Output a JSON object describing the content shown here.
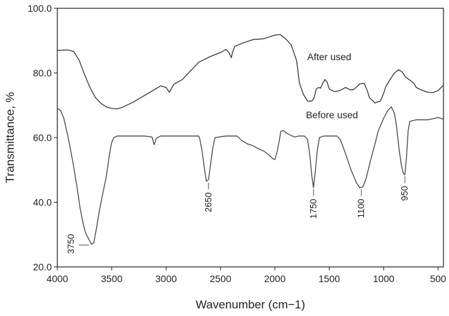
{
  "chart_data": {
    "type": "line",
    "title": "",
    "xlabel": "Wavenumber (cm−1)",
    "ylabel": "Transmittance, %",
    "xlim": [
      4000,
      450
    ],
    "ylim": [
      20,
      100
    ],
    "x_reversed": true,
    "grid": false,
    "legend": "none",
    "x_ticks": [
      4000,
      3500,
      3000,
      2500,
      2000,
      1500,
      1000,
      500
    ],
    "x_tick_labels": [
      "4000",
      "3500",
      "3000",
      "2500",
      "2000",
      "1500",
      "1000",
      "500"
    ],
    "y_ticks": [
      20,
      40,
      60,
      80,
      100
    ],
    "y_tick_labels": [
      "20.0",
      "40.0",
      "60.0",
      "80.0",
      "100.0"
    ],
    "series": [
      {
        "name": "After used",
        "color": "#3a3a3a",
        "points": [
          [
            4000,
            87.0
          ],
          [
            3900,
            87.1
          ],
          [
            3850,
            86.6
          ],
          [
            3800,
            84.0
          ],
          [
            3750,
            79.5
          ],
          [
            3700,
            75.5
          ],
          [
            3650,
            72.4
          ],
          [
            3600,
            70.6
          ],
          [
            3550,
            69.5
          ],
          [
            3500,
            69.0
          ],
          [
            3450,
            68.9
          ],
          [
            3400,
            69.4
          ],
          [
            3300,
            71.0
          ],
          [
            3200,
            73.0
          ],
          [
            3100,
            75.0
          ],
          [
            3050,
            76.0
          ],
          [
            3000,
            75.5
          ],
          [
            2970,
            74.0
          ],
          [
            2930,
            76.5
          ],
          [
            2850,
            78.0
          ],
          [
            2800,
            79.8
          ],
          [
            2700,
            83.3
          ],
          [
            2600,
            85.0
          ],
          [
            2500,
            86.3
          ],
          [
            2450,
            87.3
          ],
          [
            2420,
            86.2
          ],
          [
            2400,
            84.7
          ],
          [
            2390,
            86.3
          ],
          [
            2370,
            88.2
          ],
          [
            2300,
            89.2
          ],
          [
            2200,
            90.3
          ],
          [
            2100,
            90.6
          ],
          [
            2000,
            91.7
          ],
          [
            1950,
            91.9
          ],
          [
            1900,
            90.5
          ],
          [
            1850,
            88.7
          ],
          [
            1800,
            83.8
          ],
          [
            1775,
            77.0
          ],
          [
            1740,
            73.5
          ],
          [
            1700,
            71.3
          ],
          [
            1660,
            71.3
          ],
          [
            1640,
            72.3
          ],
          [
            1620,
            75.0
          ],
          [
            1600,
            75.5
          ],
          [
            1580,
            75.3
          ],
          [
            1560,
            76.8
          ],
          [
            1540,
            78.0
          ],
          [
            1520,
            77.2
          ],
          [
            1500,
            75.0
          ],
          [
            1450,
            74.2
          ],
          [
            1400,
            74.6
          ],
          [
            1350,
            75.5
          ],
          [
            1310,
            74.8
          ],
          [
            1280,
            74.8
          ],
          [
            1250,
            75.6
          ],
          [
            1220,
            76.6
          ],
          [
            1180,
            76.8
          ],
          [
            1150,
            74.5
          ],
          [
            1130,
            72.3
          ],
          [
            1100,
            71.4
          ],
          [
            1080,
            70.7
          ],
          [
            1050,
            71.1
          ],
          [
            1030,
            71.3
          ],
          [
            1000,
            73.7
          ],
          [
            980,
            75.8
          ],
          [
            940,
            78.0
          ],
          [
            900,
            80.0
          ],
          [
            860,
            81.0
          ],
          [
            830,
            80.3
          ],
          [
            800,
            78.8
          ],
          [
            760,
            77.8
          ],
          [
            720,
            76.7
          ],
          [
            700,
            75.5
          ],
          [
            650,
            74.7
          ],
          [
            600,
            74.1
          ],
          [
            550,
            73.9
          ],
          [
            500,
            74.5
          ],
          [
            470,
            75.6
          ],
          [
            450,
            76.2
          ]
        ]
      },
      {
        "name": "Before used",
        "color": "#4a4a4a",
        "points": [
          [
            4000,
            69.0
          ],
          [
            3970,
            68.4
          ],
          [
            3940,
            66.0
          ],
          [
            3900,
            60.0
          ],
          [
            3860,
            53.0
          ],
          [
            3820,
            45.0
          ],
          [
            3790,
            38.0
          ],
          [
            3760,
            33.0
          ],
          [
            3740,
            30.5
          ],
          [
            3710,
            28.5
          ],
          [
            3685,
            27.0
          ],
          [
            3665,
            27.5
          ],
          [
            3640,
            32.0
          ],
          [
            3610,
            38.0
          ],
          [
            3580,
            43.0
          ],
          [
            3550,
            48.0
          ],
          [
            3520,
            55.0
          ],
          [
            3500,
            58.5
          ],
          [
            3480,
            60.0
          ],
          [
            3450,
            60.5
          ],
          [
            3350,
            60.5
          ],
          [
            3200,
            60.5
          ],
          [
            3130,
            60.2
          ],
          [
            3110,
            57.8
          ],
          [
            3090,
            59.8
          ],
          [
            3050,
            60.5
          ],
          [
            2900,
            60.5
          ],
          [
            2700,
            60.5
          ],
          [
            2690,
            59.5
          ],
          [
            2670,
            56.0
          ],
          [
            2650,
            51.0
          ],
          [
            2630,
            46.5
          ],
          [
            2610,
            47.0
          ],
          [
            2590,
            52.0
          ],
          [
            2570,
            57.0
          ],
          [
            2550,
            60.0
          ],
          [
            2450,
            60.5
          ],
          [
            2350,
            60.5
          ],
          [
            2300,
            59.0
          ],
          [
            2250,
            58.0
          ],
          [
            2200,
            57.5
          ],
          [
            2150,
            56.5
          ],
          [
            2100,
            55.8
          ],
          [
            2050,
            54.5
          ],
          [
            2020,
            53.5
          ],
          [
            2000,
            53.2
          ],
          [
            1980,
            55.5
          ],
          [
            1960,
            59.0
          ],
          [
            1945,
            62.0
          ],
          [
            1920,
            62.2
          ],
          [
            1900,
            61.5
          ],
          [
            1870,
            61.0
          ],
          [
            1840,
            60.5
          ],
          [
            1820,
            60.2
          ],
          [
            1780,
            60.5
          ],
          [
            1730,
            60.5
          ],
          [
            1700,
            59.5
          ],
          [
            1680,
            55.0
          ],
          [
            1660,
            48.0
          ],
          [
            1645,
            44.5
          ],
          [
            1630,
            49.0
          ],
          [
            1610,
            56.0
          ],
          [
            1590,
            60.0
          ],
          [
            1550,
            60.5
          ],
          [
            1430,
            60.5
          ],
          [
            1400,
            59.5
          ],
          [
            1350,
            55.0
          ],
          [
            1300,
            50.0
          ],
          [
            1250,
            46.0
          ],
          [
            1220,
            44.5
          ],
          [
            1190,
            44.8
          ],
          [
            1160,
            47.5
          ],
          [
            1120,
            53.0
          ],
          [
            1080,
            58.0
          ],
          [
            1050,
            62.0
          ],
          [
            1000,
            66.0
          ],
          [
            960,
            68.5
          ],
          [
            930,
            69.5
          ],
          [
            900,
            67.5
          ],
          [
            880,
            63.0
          ],
          [
            860,
            57.0
          ],
          [
            840,
            52.0
          ],
          [
            820,
            49.0
          ],
          [
            805,
            48.5
          ],
          [
            790,
            54.0
          ],
          [
            775,
            62.0
          ],
          [
            760,
            65.0
          ],
          [
            700,
            65.5
          ],
          [
            600,
            65.5
          ],
          [
            550,
            65.8
          ],
          [
            500,
            66.2
          ],
          [
            460,
            65.8
          ],
          [
            450,
            65.7
          ]
        ]
      }
    ],
    "annotations": [
      {
        "text": "After used",
        "x": 1500,
        "y": 84
      },
      {
        "text": "Before used",
        "x": 1475,
        "y": 66
      }
    ],
    "peak_labels": [
      {
        "text": "3750",
        "x": 3690,
        "y": 27,
        "label_x": 3880
      },
      {
        "text": "2650",
        "x": 2610,
        "y": 46.5,
        "label_x": 2610
      },
      {
        "text": "1750",
        "x": 1645,
        "y": 44.5,
        "label_x": 1645
      },
      {
        "text": "1100",
        "x": 1205,
        "y": 44.5,
        "label_x": 1205
      },
      {
        "text": "950",
        "x": 805,
        "y": 48.5,
        "label_x": 805
      }
    ]
  }
}
